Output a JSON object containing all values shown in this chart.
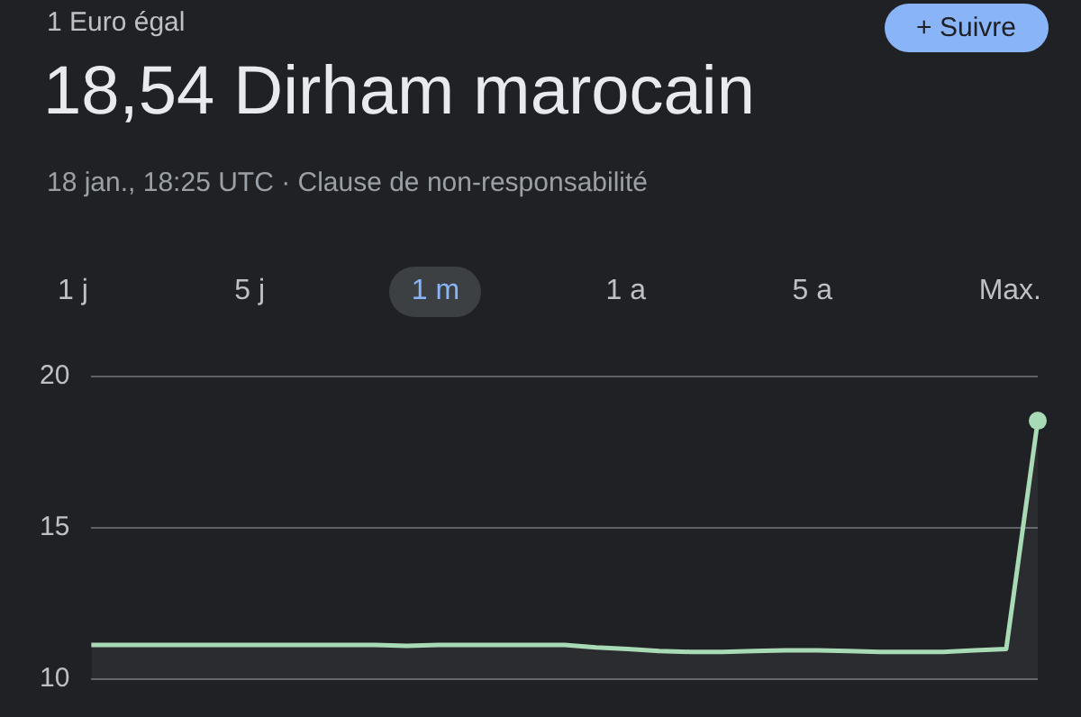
{
  "chart_data": {
    "type": "area",
    "title": "18,54 Dirham marocain",
    "subtitle": "18 jan., 18:25 UTC · Clause de non-responsabilité",
    "annotations": [
      "1 Euro égal",
      "+ Suivre",
      "1 j",
      "5 j",
      "1 m",
      "1 a",
      "5 a",
      "Max."
    ],
    "categories": [
      null,
      null,
      null,
      null,
      null,
      null,
      null,
      null,
      null,
      null,
      null,
      null,
      null,
      null,
      null,
      null,
      null,
      null,
      null,
      null,
      null,
      null,
      null,
      null,
      null,
      null,
      null,
      null,
      null,
      null,
      null
    ],
    "values": [
      11.13,
      11.13,
      11.13,
      11.13,
      11.13,
      11.13,
      11.13,
      11.13,
      11.13,
      11.13,
      11.1,
      11.13,
      11.13,
      11.13,
      11.13,
      11.13,
      11.05,
      11.0,
      10.93,
      10.9,
      10.9,
      10.93,
      10.95,
      10.95,
      10.93,
      10.9,
      10.9,
      10.9,
      10.95,
      11.0,
      18.54
    ],
    "color": "#a8dab5",
    "ylim": [
      10,
      20
    ],
    "yticks": [
      10,
      15,
      20
    ],
    "grid": "y",
    "legend": false
  }
}
